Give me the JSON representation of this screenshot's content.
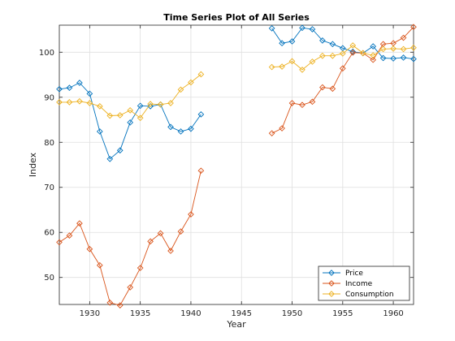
{
  "chart_data": {
    "type": "line",
    "title": "Time Series Plot of All Series",
    "xlabel": "Year",
    "ylabel": "Index",
    "xlim": [
      1927,
      1962
    ],
    "ylim": [
      44,
      106
    ],
    "xticks": [
      1930,
      1935,
      1940,
      1945,
      1950,
      1955,
      1960
    ],
    "yticks": [
      50,
      60,
      70,
      80,
      90,
      100
    ],
    "grid": true,
    "legend_position": "bottom-right",
    "marker": "diamond",
    "series": [
      {
        "name": "Price",
        "color": "#0072BD",
        "points": [
          [
            1927,
            91.8
          ],
          [
            1928,
            92.1
          ],
          [
            1929,
            93.2
          ],
          [
            1930,
            90.8
          ],
          [
            1931,
            82.4
          ],
          [
            1932,
            76.3
          ],
          [
            1933,
            78.2
          ],
          [
            1934,
            84.4
          ],
          [
            1935,
            88.1
          ],
          [
            1936,
            88.0
          ],
          [
            1937,
            88.4
          ],
          [
            1938,
            83.4
          ],
          [
            1939,
            82.4
          ],
          [
            1940,
            83.0
          ],
          [
            1941,
            86.2
          ],
          [
            1948,
            105.3
          ],
          [
            1949,
            102.0
          ],
          [
            1950,
            102.4
          ],
          [
            1951,
            105.4
          ],
          [
            1952,
            105.1
          ],
          [
            1953,
            102.6
          ],
          [
            1954,
            101.8
          ],
          [
            1955,
            100.9
          ],
          [
            1956,
            100.1
          ],
          [
            1957,
            99.8
          ],
          [
            1958,
            101.3
          ],
          [
            1959,
            98.7
          ],
          [
            1960,
            98.6
          ],
          [
            1961,
            98.8
          ],
          [
            1962,
            98.5
          ]
        ]
      },
      {
        "name": "Income",
        "color": "#D95319",
        "points": [
          [
            1927,
            57.8
          ],
          [
            1928,
            59.3
          ],
          [
            1929,
            62.0
          ],
          [
            1930,
            56.3
          ],
          [
            1931,
            52.7
          ],
          [
            1932,
            44.4
          ],
          [
            1933,
            43.8
          ],
          [
            1934,
            47.8
          ],
          [
            1935,
            52.1
          ],
          [
            1936,
            58.0
          ],
          [
            1937,
            59.8
          ],
          [
            1938,
            55.9
          ],
          [
            1939,
            60.2
          ],
          [
            1940,
            64.0
          ],
          [
            1941,
            73.7
          ],
          [
            1948,
            82.0
          ],
          [
            1949,
            83.1
          ],
          [
            1950,
            88.7
          ],
          [
            1951,
            88.3
          ],
          [
            1952,
            89.0
          ],
          [
            1953,
            92.2
          ],
          [
            1954,
            91.9
          ],
          [
            1955,
            96.4
          ],
          [
            1956,
            99.9
          ],
          [
            1957,
            99.8
          ],
          [
            1958,
            98.3
          ],
          [
            1959,
            101.8
          ],
          [
            1960,
            102.0
          ],
          [
            1961,
            103.2
          ],
          [
            1962,
            105.6
          ]
        ]
      },
      {
        "name": "Consumption",
        "color": "#EDB120",
        "points": [
          [
            1927,
            88.9
          ],
          [
            1928,
            88.9
          ],
          [
            1929,
            89.1
          ],
          [
            1930,
            88.7
          ],
          [
            1931,
            88.0
          ],
          [
            1932,
            85.9
          ],
          [
            1933,
            86.0
          ],
          [
            1934,
            87.1
          ],
          [
            1935,
            85.4
          ],
          [
            1936,
            88.5
          ],
          [
            1937,
            88.4
          ],
          [
            1938,
            88.7
          ],
          [
            1939,
            91.7
          ],
          [
            1940,
            93.3
          ],
          [
            1941,
            95.1
          ],
          [
            1948,
            96.7
          ],
          [
            1949,
            96.8
          ],
          [
            1950,
            98.0
          ],
          [
            1951,
            96.1
          ],
          [
            1952,
            97.9
          ],
          [
            1953,
            99.2
          ],
          [
            1954,
            99.2
          ],
          [
            1955,
            99.7
          ],
          [
            1956,
            101.5
          ],
          [
            1957,
            99.8
          ],
          [
            1958,
            99.3
          ],
          [
            1959,
            100.7
          ],
          [
            1960,
            100.8
          ],
          [
            1961,
            100.7
          ],
          [
            1962,
            101.0
          ]
        ]
      }
    ]
  }
}
